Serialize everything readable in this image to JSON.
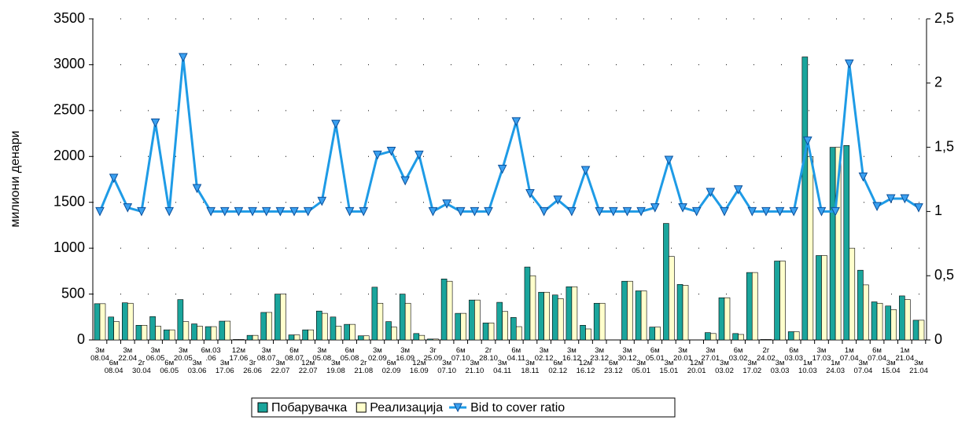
{
  "chart_data": {
    "type": "bar",
    "y_label": "милиони денари",
    "categories": [
      "3м\n08.04",
      "6м\n08.04",
      "3м\n22.04",
      "2г\n30.04",
      "3м\n06.05",
      "6м\n06.05",
      "3м\n20.05",
      "3м\n03.06",
      "6м.03\n.06",
      "3м\n17.06",
      "12м\n17.06",
      "3г\n26.06",
      "3м\n08.07",
      "3м\n22.07",
      "6м\n08.07",
      "12м\n22.07",
      "3м\n05.08",
      "3м\n19.08",
      "6м\n05.08",
      "2г\n21.08",
      "3м\n02.09",
      "6м\n02.09",
      "3м\n16.09",
      "12м\n16.09",
      "3г\n25.09",
      "3м\n07.10",
      "6м\n07.10",
      "3м\n21.10",
      "2г\n28.10",
      "3м\n04.11",
      "6м\n04.11",
      "3м\n18.11",
      "3м\n02.12",
      "6м\n02.12",
      "3м\n16.12",
      "12м\n16.12",
      "3м\n23.12",
      "6м\n23.12",
      "3м\n30.12",
      "3м\n05.01",
      "6м\n05.01",
      "3м\n15.01",
      "3м\n20.01",
      "12м\n20.01",
      "3м\n27.01",
      "3м\n03.02",
      "6м\n03.02",
      "3м\n17.02",
      "2г\n24.02",
      "3м\n03.03",
      "6м\n03.03",
      "1м\n10.03",
      "3м\n17.03",
      "1м\n24.03",
      "1м\n07.04",
      "3м\n07.04",
      "6м\n07.04",
      "3м\n15.04",
      "1м\n21.04",
      "3м\n21.04"
    ],
    "series": [
      {
        "name": "Побарувачка",
        "type": "bar",
        "color": "#1aa59c",
        "values": [
          395,
          250,
          405,
          160,
          255,
          110,
          440,
          175,
          145,
          205,
          5,
          50,
          300,
          500,
          55,
          110,
          315,
          250,
          170,
          45,
          575,
          200,
          500,
          70,
          10,
          665,
          290,
          435,
          185,
          410,
          245,
          795,
          520,
          490,
          580,
          160,
          400,
          0,
          640,
          535,
          140,
          1270,
          605,
          0,
          80,
          460,
          70,
          735,
          5,
          860,
          90,
          3085,
          920,
          2100,
          2120,
          760,
          415,
          370,
          480,
          215
        ]
      },
      {
        "name": "Реализација",
        "type": "bar",
        "color": "#ffffcc",
        "values": [
          395,
          200,
          400,
          160,
          150,
          110,
          200,
          150,
          145,
          205,
          5,
          50,
          300,
          500,
          55,
          110,
          290,
          150,
          170,
          45,
          400,
          140,
          400,
          50,
          10,
          640,
          290,
          435,
          185,
          310,
          145,
          700,
          520,
          450,
          580,
          120,
          400,
          0,
          640,
          535,
          140,
          910,
          595,
          0,
          70,
          460,
          60,
          735,
          5,
          860,
          90,
          2000,
          920,
          2100,
          1000,
          600,
          400,
          330,
          440,
          215
        ]
      },
      {
        "name": "Bid to cover ratio",
        "type": "line",
        "axis": "y2",
        "color": "#1e9be6",
        "values": [
          1.0,
          1.26,
          1.03,
          1.0,
          1.69,
          1.0,
          2.2,
          1.18,
          1.0,
          1.0,
          1.0,
          1.0,
          1.0,
          1.0,
          1.0,
          1.0,
          1.08,
          1.68,
          1.0,
          1.0,
          1.44,
          1.47,
          1.24,
          1.44,
          1.0,
          1.06,
          1.0,
          1.0,
          1.0,
          1.33,
          1.7,
          1.14,
          1.0,
          1.09,
          1.0,
          1.32,
          1.0,
          1.0,
          1.0,
          1.0,
          1.03,
          1.4,
          1.03,
          1.0,
          1.15,
          1.0,
          1.17,
          1.0,
          1.0,
          1.0,
          1.0,
          1.55,
          1.0,
          1.0,
          2.15,
          1.27,
          1.04,
          1.1,
          1.1,
          1.03
        ]
      }
    ],
    "ylim": [
      0,
      3500
    ],
    "yticks": [
      0,
      500,
      1000,
      1500,
      2000,
      2500,
      3000,
      3500
    ],
    "y2lim": [
      0,
      2.5
    ],
    "y2ticks": [
      0,
      {
        "value": 0.5,
        "label": "0,5"
      },
      1,
      {
        "value": 1.5,
        "label": "1,5"
      },
      2,
      {
        "value": 2.5,
        "label": "2,5"
      }
    ],
    "grid": true
  }
}
